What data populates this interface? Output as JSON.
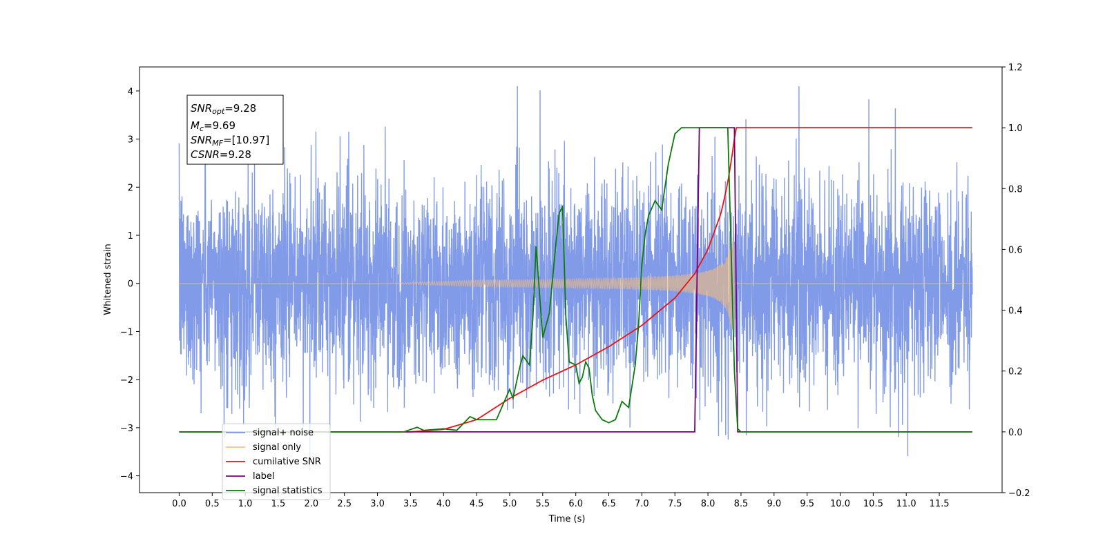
{
  "chart_data": {
    "type": "line",
    "title": "",
    "xlabel": "Time (s)",
    "ylabel": "Whitened strain",
    "xlim": [
      -0.6,
      12.45
    ],
    "ylim": [
      -4.35,
      4.5
    ],
    "ylim_right": [
      -0.2,
      1.2
    ],
    "x_ticks": [
      "0.0",
      "0.5",
      "1.0",
      "1.5",
      "2.0",
      "2.5",
      "3.0",
      "3.5",
      "4.0",
      "4.5",
      "5.0",
      "5.5",
      "6.0",
      "6.5",
      "7.0",
      "7.5",
      "8.0",
      "8.5",
      "9.0",
      "9.5",
      "10.0",
      "10.5",
      "11.0",
      "11.5"
    ],
    "y_ticks_left": [
      "4",
      "3",
      "2",
      "1",
      "0",
      "−1",
      "−2",
      "−3",
      "−4"
    ],
    "y_ticks_right": [
      "1.2",
      "1.0",
      "0.8",
      "0.6",
      "0.4",
      "0.2",
      "0.0",
      "−0.2"
    ],
    "grid": false,
    "legend_placement": "lower-left",
    "info_box": {
      "snr_opt_main": "SNR",
      "snr_opt_sub": "opt",
      "snr_opt_value": "=9.28",
      "mc_main": "M",
      "mc_sub": "c",
      "mc_value": "=9.69",
      "snr_mf_main": "SNR",
      "snr_mf_sub": "MF",
      "snr_mf_value": "=[10.97]",
      "csnr_main": "CSNR",
      "csnr_value": "=9.28"
    },
    "series": [
      {
        "name": "signal+ noise",
        "axis": "left",
        "color": "#7b96e8",
        "noise_std": 1.05,
        "x_range": [
          0.0,
          12.0
        ],
        "description_values": "whitened noise with injected signal"
      },
      {
        "name": "signal only",
        "axis": "left",
        "color": "#ffc070",
        "chirp_end_time": 8.4,
        "chirp_start_time": 3.0,
        "peak_amplitude": 1.0
      },
      {
        "name": "cumilative SNR",
        "axis": "right",
        "color": "#ee1111",
        "x": [
          0.0,
          3.5,
          4.0,
          4.5,
          5.0,
          5.5,
          6.0,
          6.5,
          7.0,
          7.5,
          7.8,
          8.0,
          8.2,
          8.3,
          8.38,
          8.42,
          8.48,
          12.0
        ],
        "y": [
          0.0,
          0.0,
          0.008,
          0.04,
          0.11,
          0.17,
          0.22,
          0.28,
          0.35,
          0.44,
          0.52,
          0.6,
          0.72,
          0.82,
          0.93,
          1.0,
          1.0,
          1.0
        ]
      },
      {
        "name": "label",
        "axis": "right",
        "color": "#7a007a",
        "x": [
          0.0,
          7.8,
          7.87,
          8.4,
          8.45,
          12.0
        ],
        "y": [
          0.0,
          0.0,
          1.0,
          1.0,
          0.0,
          0.0
        ]
      },
      {
        "name": "signal statistics",
        "axis": "right",
        "color": "#0b7a0b",
        "x": [
          0.0,
          3.4,
          3.6,
          3.7,
          4.0,
          4.2,
          4.4,
          4.5,
          4.8,
          5.0,
          5.05,
          5.15,
          5.2,
          5.3,
          5.35,
          5.4,
          5.5,
          5.6,
          5.7,
          5.75,
          5.8,
          5.85,
          5.9,
          6.0,
          6.05,
          6.1,
          6.15,
          6.2,
          6.25,
          6.3,
          6.4,
          6.5,
          6.55,
          6.6,
          6.7,
          6.8,
          6.85,
          6.9,
          6.95,
          7.0,
          7.05,
          7.1,
          7.2,
          7.3,
          7.4,
          7.5,
          7.6,
          7.7,
          7.8,
          8.0,
          8.3,
          8.35,
          8.4,
          8.45,
          8.5,
          12.0
        ],
        "y": [
          0.0,
          0.0,
          0.015,
          0.005,
          0.01,
          0.005,
          0.05,
          0.04,
          0.04,
          0.14,
          0.11,
          0.21,
          0.25,
          0.22,
          0.37,
          0.61,
          0.31,
          0.39,
          0.62,
          0.72,
          0.74,
          0.38,
          0.23,
          0.22,
          0.16,
          0.18,
          0.23,
          0.21,
          0.12,
          0.07,
          0.04,
          0.03,
          0.035,
          0.04,
          0.1,
          0.08,
          0.15,
          0.22,
          0.35,
          0.55,
          0.65,
          0.71,
          0.76,
          0.73,
          0.88,
          0.98,
          1.0,
          1.0,
          1.0,
          1.0,
          1.0,
          0.6,
          0.2,
          0.01,
          0.0,
          0.0
        ]
      }
    ]
  }
}
